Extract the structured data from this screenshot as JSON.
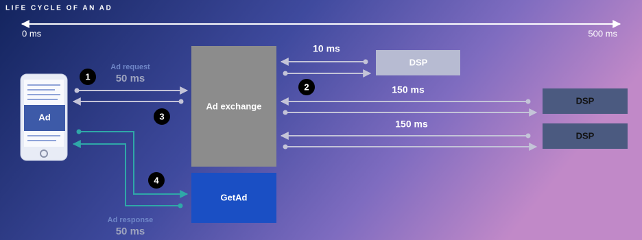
{
  "title": "LIFE CYCLE OF AN AD",
  "timeline": {
    "start": "0 ms",
    "end": "500 ms"
  },
  "request": {
    "label": "Ad request",
    "time": "50 ms"
  },
  "response": {
    "label": "Ad response",
    "time": "50 ms"
  },
  "phone_ad": "Ad",
  "exchange": "Ad exchange",
  "get_ad": "GetAd",
  "dsps": [
    {
      "label": "DSP",
      "time": "10 ms"
    },
    {
      "label": "DSP",
      "time": "150 ms"
    },
    {
      "label": "DSP",
      "time": "150 ms"
    }
  ],
  "steps": [
    "1",
    "2",
    "3",
    "4"
  ]
}
